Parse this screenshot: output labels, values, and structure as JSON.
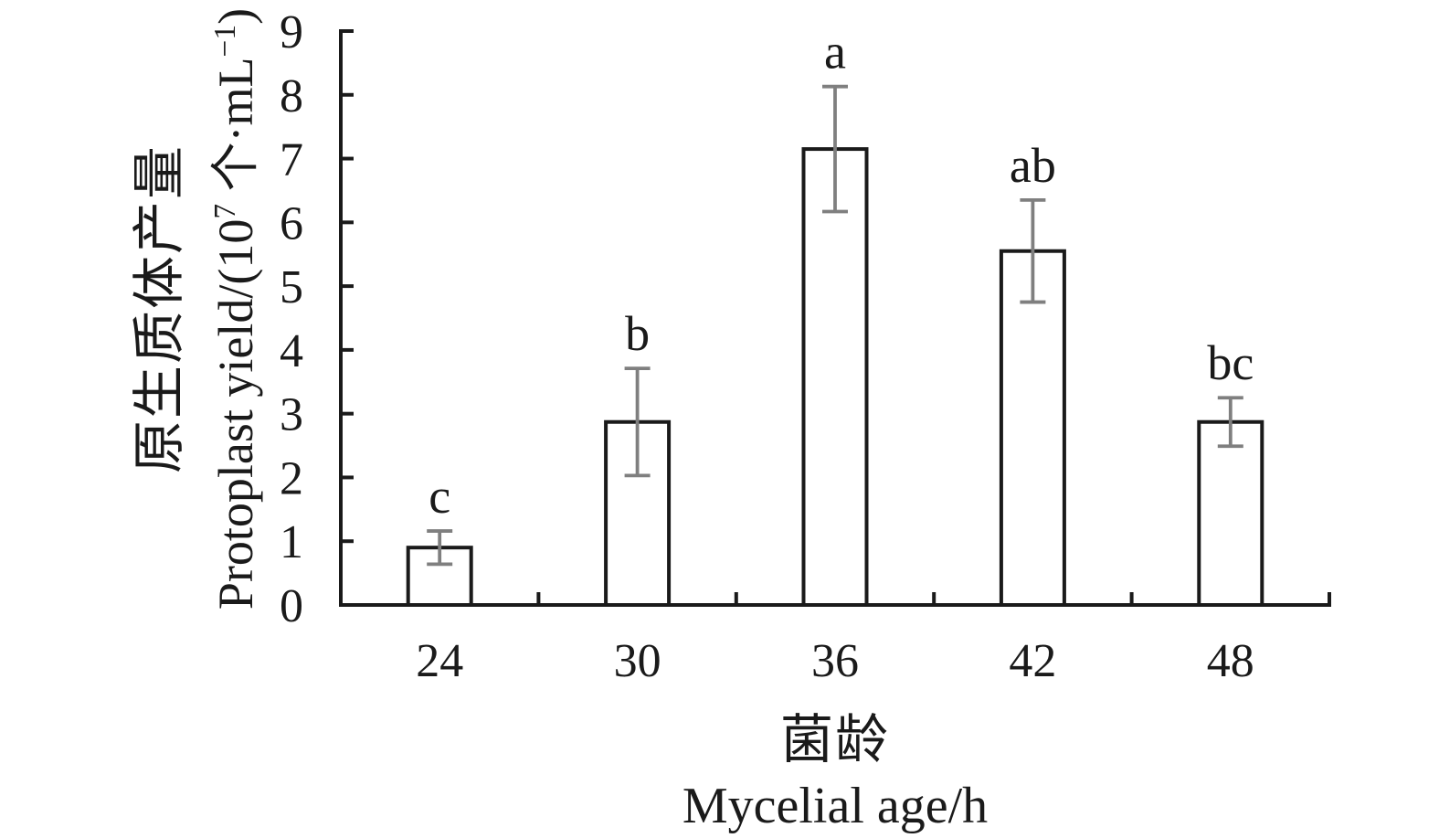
{
  "figure": {
    "background": "#ffffff"
  },
  "chart_data": {
    "type": "bar",
    "categories": [
      "24",
      "30",
      "36",
      "42",
      "48"
    ],
    "values": [
      0.9,
      2.87,
      7.15,
      5.55,
      2.87
    ],
    "error_bars": [
      0.26,
      0.84,
      0.98,
      0.8,
      0.38
    ],
    "sig_letters": [
      "c",
      "b",
      "a",
      "ab",
      "bc"
    ],
    "title": "",
    "xlabel_zh": "菌龄",
    "xlabel_en": "Mycelial age/h",
    "ylabel_zh": "原生质体产量",
    "ylabel_en": "Protoplast yield/(10⁷ 个·mL⁻¹)",
    "ylim": [
      0,
      9
    ],
    "yticks": [
      0,
      1,
      2,
      3,
      4,
      5,
      6,
      7,
      8,
      9
    ],
    "grid": false,
    "legend": "none",
    "bar_fill": "#ffffff",
    "bar_stroke": "#1a1a1a",
    "error_color": "#7f7f7f",
    "axis_color": "#1a1a1a",
    "text_color": "#1a1a1a"
  },
  "ylabel_en_parts": {
    "pre": "Protoplast yield/(10",
    "sup1": "7",
    "mid": " 个·mL",
    "sup2": "−1",
    "post": ")"
  }
}
